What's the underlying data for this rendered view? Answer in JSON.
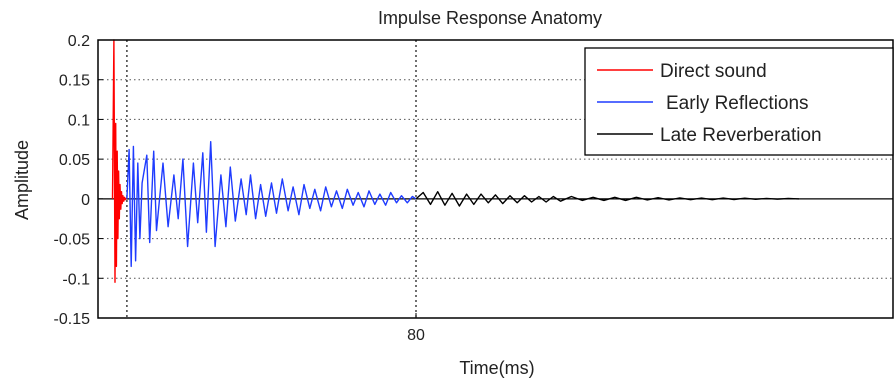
{
  "chart_data": {
    "type": "line",
    "title": "Impulse Response Anatomy",
    "xlabel": "Time(ms)",
    "ylabel": "Amplitude",
    "xlim": [
      -8,
      212
    ],
    "ylim": [
      -0.15,
      0.2
    ],
    "yticks": [
      0.2,
      0.15,
      0.1,
      0.05,
      0,
      -0.05,
      -0.1,
      -0.15
    ],
    "ytick_labels": [
      "0.2",
      "0.15",
      "0.1",
      "0.05",
      "0",
      "-0.05",
      "-0.1",
      "-0.15"
    ],
    "xticks": [
      80
    ],
    "xtick_labels": [
      "80"
    ],
    "vlines": [
      0,
      80
    ],
    "grid": "dotted",
    "legend_position": "top-right",
    "colors": {
      "direct": "#ff0000",
      "early": "#1f3cff",
      "late": "#000000"
    },
    "series": [
      {
        "name": "Direct sound",
        "color": "#ff0000",
        "x": [
          -4,
          -3.6,
          -3.3,
          -3.1,
          -2.9,
          -2.7,
          -2.5,
          -2.3,
          -2.1,
          -1.9,
          -1.7,
          -1.5,
          -1.3,
          -1.1,
          -0.9,
          -0.7,
          -0.5,
          -0.2,
          0
        ],
        "y": [
          0,
          0.2,
          -0.105,
          0.095,
          -0.085,
          0.06,
          -0.05,
          0.035,
          -0.025,
          0.018,
          -0.013,
          0.009,
          -0.006,
          0.004,
          -0.003,
          0.002,
          -0.001,
          0.001,
          0
        ]
      },
      {
        "name": "Early Reflections",
        "color": "#1f3cff",
        "x": [
          0,
          0.6,
          1.2,
          1.8,
          2.4,
          3,
          3.6,
          4.2,
          5.5,
          6.3,
          7.4,
          8.2,
          10,
          11.4,
          13,
          14.2,
          15.5,
          16.8,
          18.4,
          19.6,
          21,
          22,
          23.2,
          24.4,
          26,
          27.4,
          28.6,
          30,
          31.6,
          33,
          34.2,
          35.6,
          37,
          38.4,
          40,
          41.4,
          43,
          44.6,
          46,
          47.6,
          49,
          50.6,
          52,
          53.6,
          55,
          56.6,
          58,
          59.6,
          61,
          62.6,
          64,
          65.6,
          67,
          68.6,
          70,
          71.6,
          73,
          74.6,
          76,
          77.6,
          79,
          80
        ],
        "y": [
          0,
          0.062,
          -0.085,
          0.066,
          -0.078,
          0.045,
          -0.05,
          0.02,
          0.055,
          -0.055,
          0.06,
          -0.04,
          0.045,
          -0.035,
          0.03,
          -0.025,
          0.05,
          -0.06,
          0.045,
          -0.03,
          0.058,
          -0.042,
          0.072,
          -0.06,
          0.03,
          -0.035,
          0.04,
          -0.028,
          0.025,
          -0.02,
          0.03,
          -0.025,
          0.018,
          -0.022,
          0.02,
          -0.018,
          0.025,
          -0.015,
          0.015,
          -0.02,
          0.018,
          -0.012,
          0.012,
          -0.015,
          0.015,
          -0.01,
          0.01,
          -0.012,
          0.012,
          -0.008,
          0.008,
          -0.01,
          0.01,
          -0.007,
          0.006,
          -0.008,
          0.008,
          -0.005,
          0.004,
          -0.005,
          0.003,
          0
        ]
      },
      {
        "name": "Late Reverberation",
        "color": "#000000",
        "x": [
          80,
          82,
          84,
          86,
          88,
          90,
          92,
          94,
          96,
          98,
          100,
          102,
          104,
          106,
          108,
          110,
          112,
          114,
          116,
          118,
          120,
          123,
          126,
          129,
          132,
          135,
          138,
          141,
          144,
          147,
          150,
          153,
          156,
          159,
          162,
          165,
          168,
          171,
          174,
          177,
          180,
          183,
          186
        ],
        "y": [
          0,
          0.008,
          -0.007,
          0.009,
          -0.008,
          0.007,
          -0.009,
          0.006,
          -0.007,
          0.006,
          -0.005,
          0.005,
          -0.006,
          0.004,
          -0.005,
          0.004,
          -0.004,
          0.003,
          -0.004,
          0.003,
          -0.003,
          0.003,
          -0.002,
          0.002,
          -0.002,
          0.002,
          -0.002,
          0.002,
          -0.0015,
          0.0015,
          -0.0015,
          0.0012,
          -0.001,
          0.001,
          -0.001,
          0.001,
          -0.0008,
          0.0008,
          -0.0006,
          0.0006,
          -0.0004,
          0.0004,
          0
        ]
      }
    ]
  }
}
